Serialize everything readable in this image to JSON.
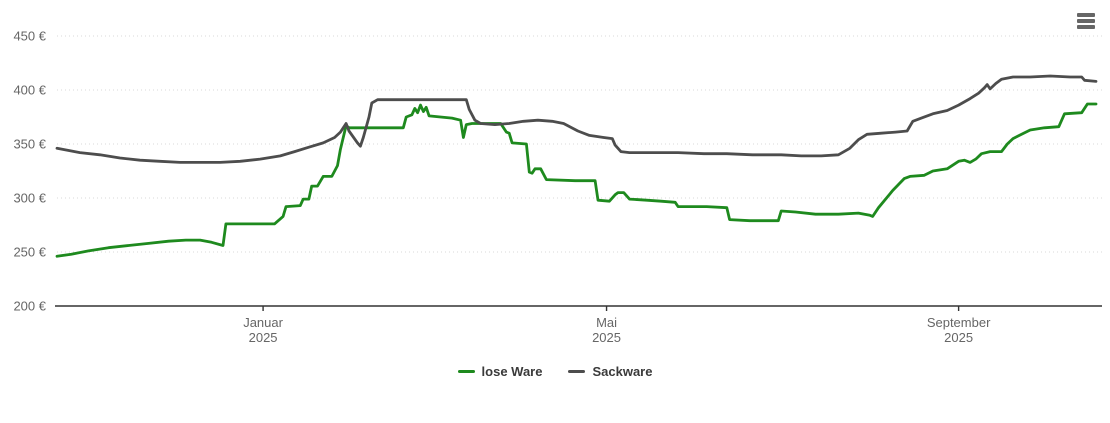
{
  "widget": {
    "context_menu_icon": "hamburger-icon"
  },
  "chart_data": {
    "type": "line",
    "title": "",
    "xlabel": "",
    "ylabel": "",
    "x_type": "datetime",
    "x_range": [
      "2024-10-21",
      "2025-10-19"
    ],
    "ylim": [
      200,
      450
    ],
    "grid": "horizontal-dotted",
    "legend_position": "bottom-center",
    "y_ticks": [
      {
        "value": 450,
        "label": "450 €"
      },
      {
        "value": 400,
        "label": "400 €"
      },
      {
        "value": 350,
        "label": "350 €"
      },
      {
        "value": 300,
        "label": "300 €"
      },
      {
        "value": 250,
        "label": "250 €"
      },
      {
        "value": 200,
        "label": "200 €"
      }
    ],
    "x_ticks": [
      {
        "date": "2025-01-01",
        "label": "Januar",
        "sublabel": "2025"
      },
      {
        "date": "2025-05-01",
        "label": "Mai",
        "sublabel": "2025"
      },
      {
        "date": "2025-09-01",
        "label": "September",
        "sublabel": "2025"
      }
    ],
    "series": [
      {
        "name": "lose Ware",
        "color": "#1e8a1e",
        "points": [
          [
            "2024-10-21",
            246
          ],
          [
            "2024-10-26",
            248
          ],
          [
            "2024-11-01",
            251
          ],
          [
            "2024-11-08",
            254
          ],
          [
            "2024-11-15",
            256
          ],
          [
            "2024-11-22",
            258
          ],
          [
            "2024-11-29",
            260
          ],
          [
            "2024-12-05",
            261
          ],
          [
            "2024-12-10",
            261
          ],
          [
            "2024-12-14",
            259
          ],
          [
            "2024-12-18",
            256
          ],
          [
            "2024-12-19",
            276
          ],
          [
            "2024-12-27",
            276
          ],
          [
            "2025-01-05",
            276
          ],
          [
            "2025-01-08",
            283
          ],
          [
            "2025-01-09",
            292
          ],
          [
            "2025-01-14",
            293
          ],
          [
            "2025-01-15",
            299
          ],
          [
            "2025-01-17",
            299
          ],
          [
            "2025-01-18",
            311
          ],
          [
            "2025-01-20",
            311
          ],
          [
            "2025-01-22",
            320
          ],
          [
            "2025-01-25",
            320
          ],
          [
            "2025-01-27",
            330
          ],
          [
            "2025-01-28",
            345
          ],
          [
            "2025-01-30",
            367
          ],
          [
            "2025-01-31",
            365
          ],
          [
            "2025-02-10",
            365
          ],
          [
            "2025-02-19",
            365
          ],
          [
            "2025-02-20",
            375
          ],
          [
            "2025-02-22",
            377
          ],
          [
            "2025-02-23",
            383
          ],
          [
            "2025-02-24",
            379
          ],
          [
            "2025-02-25",
            386
          ],
          [
            "2025-02-26",
            380
          ],
          [
            "2025-02-27",
            384
          ],
          [
            "2025-02-28",
            376
          ],
          [
            "2025-03-04",
            375
          ],
          [
            "2025-03-08",
            374
          ],
          [
            "2025-03-11",
            372
          ],
          [
            "2025-03-12",
            356
          ],
          [
            "2025-03-13",
            368
          ],
          [
            "2025-03-15",
            369
          ],
          [
            "2025-03-25",
            369
          ],
          [
            "2025-03-27",
            361
          ],
          [
            "2025-03-28",
            360
          ],
          [
            "2025-03-29",
            351
          ],
          [
            "2025-04-03",
            350
          ],
          [
            "2025-04-04",
            324
          ],
          [
            "2025-04-05",
            323
          ],
          [
            "2025-04-06",
            327
          ],
          [
            "2025-04-08",
            327
          ],
          [
            "2025-04-10",
            317
          ],
          [
            "2025-04-20",
            316
          ],
          [
            "2025-04-27",
            316
          ],
          [
            "2025-04-28",
            298
          ],
          [
            "2025-05-02",
            297
          ],
          [
            "2025-05-04",
            303
          ],
          [
            "2025-05-05",
            305
          ],
          [
            "2025-05-07",
            305
          ],
          [
            "2025-05-09",
            299
          ],
          [
            "2025-05-15",
            298
          ],
          [
            "2025-05-20",
            297
          ],
          [
            "2025-05-25",
            296
          ],
          [
            "2025-05-26",
            292
          ],
          [
            "2025-06-05",
            292
          ],
          [
            "2025-06-12",
            291
          ],
          [
            "2025-06-13",
            280
          ],
          [
            "2025-06-20",
            279
          ],
          [
            "2025-06-30",
            279
          ],
          [
            "2025-07-01",
            288
          ],
          [
            "2025-07-06",
            287
          ],
          [
            "2025-07-13",
            285
          ],
          [
            "2025-07-21",
            285
          ],
          [
            "2025-07-28",
            286
          ],
          [
            "2025-08-01",
            284
          ],
          [
            "2025-08-02",
            283
          ],
          [
            "2025-08-04",
            291
          ],
          [
            "2025-08-09",
            307
          ],
          [
            "2025-08-13",
            318
          ],
          [
            "2025-08-15",
            320
          ],
          [
            "2025-08-20",
            321
          ],
          [
            "2025-08-23",
            325
          ],
          [
            "2025-08-28",
            327
          ],
          [
            "2025-09-01",
            334
          ],
          [
            "2025-09-03",
            335
          ],
          [
            "2025-09-05",
            333
          ],
          [
            "2025-09-07",
            336
          ],
          [
            "2025-09-09",
            341
          ],
          [
            "2025-09-12",
            343
          ],
          [
            "2025-09-16",
            343
          ],
          [
            "2025-09-18",
            350
          ],
          [
            "2025-09-20",
            355
          ],
          [
            "2025-09-23",
            359
          ],
          [
            "2025-09-26",
            363
          ],
          [
            "2025-10-01",
            365
          ],
          [
            "2025-10-06",
            366
          ],
          [
            "2025-10-08",
            378
          ],
          [
            "2025-10-14",
            379
          ],
          [
            "2025-10-16",
            387
          ],
          [
            "2025-10-19",
            387
          ]
        ]
      },
      {
        "name": "Sackware",
        "color": "#4d4d4d",
        "points": [
          [
            "2024-10-21",
            346
          ],
          [
            "2024-10-29",
            342
          ],
          [
            "2024-11-05",
            340
          ],
          [
            "2024-11-12",
            337
          ],
          [
            "2024-11-19",
            335
          ],
          [
            "2024-11-26",
            334
          ],
          [
            "2024-12-03",
            333
          ],
          [
            "2024-12-10",
            333
          ],
          [
            "2024-12-17",
            333
          ],
          [
            "2024-12-24",
            334
          ],
          [
            "2024-12-31",
            336
          ],
          [
            "2025-01-07",
            339
          ],
          [
            "2025-01-12",
            343
          ],
          [
            "2025-01-17",
            347
          ],
          [
            "2025-01-22",
            351
          ],
          [
            "2025-01-26",
            356
          ],
          [
            "2025-01-28",
            361
          ],
          [
            "2025-01-30",
            369
          ],
          [
            "2025-01-31",
            362
          ],
          [
            "2025-02-03",
            351
          ],
          [
            "2025-02-04",
            348
          ],
          [
            "2025-02-05",
            356
          ],
          [
            "2025-02-07",
            375
          ],
          [
            "2025-02-08",
            388
          ],
          [
            "2025-02-10",
            391
          ],
          [
            "2025-02-20",
            391
          ],
          [
            "2025-03-01",
            391
          ],
          [
            "2025-03-10",
            391
          ],
          [
            "2025-03-13",
            391
          ],
          [
            "2025-03-14",
            382
          ],
          [
            "2025-03-16",
            372
          ],
          [
            "2025-03-18",
            369
          ],
          [
            "2025-03-23",
            368
          ],
          [
            "2025-03-28",
            369
          ],
          [
            "2025-04-02",
            371
          ],
          [
            "2025-04-07",
            372
          ],
          [
            "2025-04-12",
            371
          ],
          [
            "2025-04-16",
            369
          ],
          [
            "2025-04-21",
            362
          ],
          [
            "2025-04-25",
            358
          ],
          [
            "2025-04-30",
            356
          ],
          [
            "2025-05-03",
            355
          ],
          [
            "2025-05-04",
            349
          ],
          [
            "2025-05-06",
            343
          ],
          [
            "2025-05-09",
            342
          ],
          [
            "2025-05-18",
            342
          ],
          [
            "2025-05-26",
            342
          ],
          [
            "2025-06-04",
            341
          ],
          [
            "2025-06-12",
            341
          ],
          [
            "2025-06-21",
            340
          ],
          [
            "2025-07-01",
            340
          ],
          [
            "2025-07-08",
            339
          ],
          [
            "2025-07-15",
            339
          ],
          [
            "2025-07-21",
            340
          ],
          [
            "2025-07-25",
            346
          ],
          [
            "2025-07-28",
            354
          ],
          [
            "2025-07-31",
            359
          ],
          [
            "2025-08-05",
            360
          ],
          [
            "2025-08-10",
            361
          ],
          [
            "2025-08-14",
            362
          ],
          [
            "2025-08-16",
            371
          ],
          [
            "2025-08-19",
            374
          ],
          [
            "2025-08-23",
            378
          ],
          [
            "2025-08-28",
            381
          ],
          [
            "2025-09-01",
            386
          ],
          [
            "2025-09-05",
            392
          ],
          [
            "2025-09-08",
            397
          ],
          [
            "2025-09-10",
            402
          ],
          [
            "2025-09-11",
            405
          ],
          [
            "2025-09-12",
            401
          ],
          [
            "2025-09-14",
            406
          ],
          [
            "2025-09-16",
            410
          ],
          [
            "2025-09-20",
            412
          ],
          [
            "2025-09-26",
            412
          ],
          [
            "2025-10-03",
            413
          ],
          [
            "2025-10-10",
            412
          ],
          [
            "2025-10-14",
            412
          ],
          [
            "2025-10-15",
            409
          ],
          [
            "2025-10-19",
            408
          ]
        ]
      }
    ]
  }
}
